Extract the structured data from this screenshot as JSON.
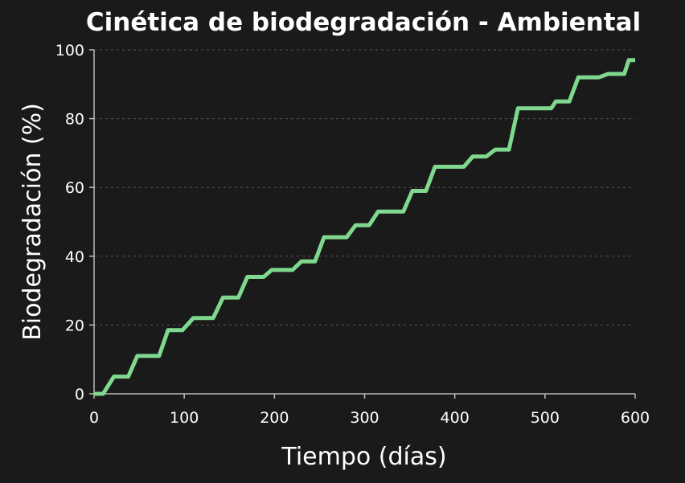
{
  "chart_data": {
    "type": "line",
    "title": "Cinética de biodegradación - Ambiental",
    "xlabel": "Tiempo (días)",
    "ylabel": "Biodegradación (%)",
    "xlim": [
      0,
      600
    ],
    "ylim": [
      0,
      100
    ],
    "xticks": [
      "0",
      "100",
      "200",
      "300",
      "400",
      "500",
      "600"
    ],
    "yticks": [
      "0",
      "20",
      "40",
      "60",
      "80",
      "100"
    ],
    "grid": "horizontal dashed",
    "line_color": "#7fd88e",
    "background": "#1a1a1a",
    "series": [
      {
        "x": [
          0,
          10,
          22,
          38,
          48,
          72,
          82,
          98,
          110,
          132,
          143,
          160,
          170,
          188,
          197,
          220,
          230,
          245,
          255,
          280,
          290,
          305,
          315,
          343,
          353,
          368,
          378,
          410,
          420,
          435,
          445,
          460,
          470,
          507,
          512,
          527,
          537,
          560,
          570,
          588,
          593,
          600
        ],
        "y": [
          0,
          0,
          5,
          5,
          11,
          11,
          18.5,
          18.5,
          22,
          22,
          28,
          28,
          34,
          34,
          36,
          36,
          38.5,
          38.5,
          45.5,
          45.5,
          49,
          49,
          53,
          53,
          59,
          59,
          66,
          66,
          69,
          69,
          71,
          71,
          83,
          83,
          85,
          85,
          92,
          92,
          93,
          93,
          97,
          97
        ]
      }
    ]
  }
}
